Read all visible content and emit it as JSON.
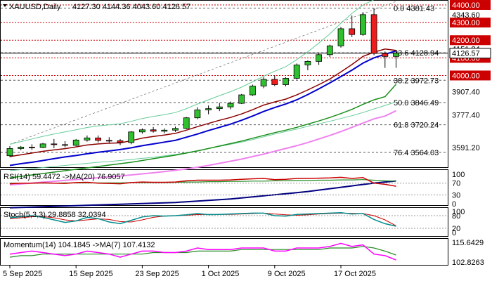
{
  "header": {
    "symbol": "XAUUSD,Daily",
    "ohlc": "4127.30 4144.36 4043.60 4126.57"
  },
  "price_panel": {
    "y_range": [
      3480,
      4420
    ],
    "axis_labels": [
      {
        "text": "4343.60",
        "value": 4343.6
      },
      {
        "text": "3907.40",
        "value": 3907.4
      },
      {
        "text": "3777.40",
        "value": 3777.4
      },
      {
        "text": "3591.20",
        "value": 3591.2
      }
    ],
    "red_levels": [
      {
        "text": "4400.00",
        "value": 4400
      },
      {
        "text": "4300.00",
        "value": 4300
      },
      {
        "text": "4200.00",
        "value": 4200
      },
      {
        "text": "4100.00",
        "value": 4100
      },
      {
        "text": "4000.00",
        "value": 4000
      }
    ],
    "current_price": {
      "text": "4126.57",
      "value": 4126.57
    },
    "ghost_price": {
      "text": "4151.24",
      "value": 4151.24
    },
    "fibo_levels": [
      {
        "text": "0.0 4381.43",
        "value": 4381.43
      },
      {
        "text": "23.6 4128.94",
        "value": 4128.94
      },
      {
        "text": "38.2 3972.73",
        "value": 3972.73
      },
      {
        "text": "50.0 3846.49",
        "value": 3846.49
      },
      {
        "text": "61.8 3720.24",
        "value": 3720.24
      },
      {
        "text": "76.4 3564.03",
        "value": 3564.03
      }
    ]
  },
  "rsi_panel": {
    "label": "RSI(14) 59.4472 ->MA(20) 76.9057",
    "y_range": [
      0,
      110
    ],
    "ticks": [
      {
        "text": "100",
        "value": 100
      },
      {
        "text": "70",
        "value": 70
      },
      {
        "text": "30",
        "value": 30
      },
      {
        "text": "0",
        "value": 0
      }
    ]
  },
  "stoch_panel": {
    "label": "Stoch(5,3,3) 29.8858 32.0394",
    "y_range": [
      -10,
      110
    ],
    "ticks": [
      {
        "text": "100",
        "value": 100
      },
      {
        "text": "80",
        "value": 80
      },
      {
        "text": "20",
        "value": 20
      },
      {
        "text": "0",
        "value": 0
      }
    ]
  },
  "momentum_panel": {
    "label": "Momentum(14) 104.1845 ->MA(7) 107.4132",
    "y_range": [
      101.5,
      117
    ],
    "ticks": [
      {
        "text": "115.6429",
        "value": 115.6429
      },
      {
        "text": "102.8263",
        "value": 102.8263
      }
    ]
  },
  "x_axis": {
    "labels": [
      {
        "text": "5 Sep 2025",
        "index": 0
      },
      {
        "text": "15 Sep 2025",
        "index": 6
      },
      {
        "text": "23 Sep 2025",
        "index": 12
      },
      {
        "text": "1 Oct 2025",
        "index": 18
      },
      {
        "text": "9 Oct 2025",
        "index": 24
      },
      {
        "text": "17 Oct 2025",
        "index": 30
      }
    ]
  },
  "colors": {
    "bull": "#2fbf2f",
    "bear": "#ee1c1c",
    "ma_fast": "#8b0000",
    "ma_mid": "#0000cc",
    "ma_slow": "#1a8f1a",
    "ma_200": "#ee82ee",
    "ma_300": "#000080",
    "band": "#66cc99",
    "level_red": "#cc0000",
    "grid_dash": "#444444",
    "rsi_line": "#cc0000",
    "rsi_ma": "#228b22",
    "stoch_k": "#008b8b",
    "stoch_d": "#cc0000",
    "mom": "#ff00ff",
    "mom_ma": "#228b22"
  },
  "chart_data": {
    "type": "candlestick",
    "title": "XAUUSD,Daily",
    "x_labels": [
      "5 Sep 2025",
      "15 Sep 2025",
      "23 Sep 2025",
      "1 Oct 2025",
      "9 Oct 2025",
      "17 Oct 2025"
    ],
    "candles": [
      {
        "o": 3545,
        "h": 3600,
        "l": 3538,
        "c": 3586
      },
      {
        "o": 3586,
        "h": 3600,
        "l": 3576,
        "c": 3594
      },
      {
        "o": 3594,
        "h": 3610,
        "l": 3578,
        "c": 3592
      },
      {
        "o": 3592,
        "h": 3618,
        "l": 3588,
        "c": 3612
      },
      {
        "o": 3612,
        "h": 3640,
        "l": 3588,
        "c": 3608
      },
      {
        "o": 3608,
        "h": 3628,
        "l": 3592,
        "c": 3604
      },
      {
        "o": 3604,
        "h": 3640,
        "l": 3600,
        "c": 3634
      },
      {
        "o": 3634,
        "h": 3660,
        "l": 3625,
        "c": 3646
      },
      {
        "o": 3646,
        "h": 3660,
        "l": 3620,
        "c": 3632
      },
      {
        "o": 3632,
        "h": 3650,
        "l": 3615,
        "c": 3630
      },
      {
        "o": 3630,
        "h": 3640,
        "l": 3605,
        "c": 3620
      },
      {
        "o": 3620,
        "h": 3685,
        "l": 3610,
        "c": 3680
      },
      {
        "o": 3680,
        "h": 3700,
        "l": 3670,
        "c": 3692
      },
      {
        "o": 3692,
        "h": 3708,
        "l": 3676,
        "c": 3684
      },
      {
        "o": 3684,
        "h": 3700,
        "l": 3672,
        "c": 3690
      },
      {
        "o": 3690,
        "h": 3710,
        "l": 3680,
        "c": 3700
      },
      {
        "o": 3700,
        "h": 3765,
        "l": 3696,
        "c": 3760
      },
      {
        "o": 3760,
        "h": 3820,
        "l": 3752,
        "c": 3805
      },
      {
        "o": 3805,
        "h": 3830,
        "l": 3780,
        "c": 3812
      },
      {
        "o": 3812,
        "h": 3845,
        "l": 3798,
        "c": 3822
      },
      {
        "o": 3822,
        "h": 3852,
        "l": 3808,
        "c": 3842
      },
      {
        "o": 3842,
        "h": 3895,
        "l": 3838,
        "c": 3890
      },
      {
        "o": 3890,
        "h": 3948,
        "l": 3884,
        "c": 3940
      },
      {
        "o": 3940,
        "h": 3990,
        "l": 3928,
        "c": 3978
      },
      {
        "o": 3978,
        "h": 4000,
        "l": 3940,
        "c": 3948
      },
      {
        "o": 3948,
        "h": 3990,
        "l": 3938,
        "c": 3984
      },
      {
        "o": 3984,
        "h": 4068,
        "l": 3978,
        "c": 4060
      },
      {
        "o": 4060,
        "h": 4085,
        "l": 4030,
        "c": 4080
      },
      {
        "o": 4080,
        "h": 4125,
        "l": 4060,
        "c": 4118
      },
      {
        "o": 4118,
        "h": 4175,
        "l": 4105,
        "c": 4168
      },
      {
        "o": 4168,
        "h": 4275,
        "l": 4158,
        "c": 4265
      },
      {
        "o": 4265,
        "h": 4340,
        "l": 4218,
        "c": 4232
      },
      {
        "o": 4232,
        "h": 4360,
        "l": 4225,
        "c": 4345
      },
      {
        "o": 4345,
        "h": 4381,
        "l": 4115,
        "c": 4125
      },
      {
        "o": 4125,
        "h": 4136,
        "l": 4043,
        "c": 4108
      },
      {
        "o": 4108,
        "h": 4144,
        "l": 4043,
        "c": 4126.57
      }
    ],
    "ma_fast": [
      3540,
      3550,
      3560,
      3570,
      3578,
      3585,
      3595,
      3606,
      3612,
      3616,
      3618,
      3630,
      3645,
      3654,
      3662,
      3672,
      3690,
      3710,
      3728,
      3746,
      3762,
      3782,
      3806,
      3832,
      3850,
      3866,
      3890,
      3918,
      3948,
      3980,
      4020,
      4062,
      4108,
      4132,
      4150,
      4142
    ],
    "ma_mid": [
      3490,
      3500,
      3508,
      3518,
      3528,
      3538,
      3546,
      3556,
      3565,
      3572,
      3580,
      3590,
      3602,
      3612,
      3622,
      3632,
      3650,
      3668,
      3688,
      3706,
      3724,
      3746,
      3770,
      3796,
      3818,
      3838,
      3862,
      3892,
      3924,
      3958,
      3994,
      4030,
      4070,
      4100,
      4120,
      4140
    ],
    "ma_slow": [
      3420,
      3428,
      3436,
      3444,
      3452,
      3460,
      3468,
      3476,
      3484,
      3492,
      3500,
      3508,
      3518,
      3528,
      3538,
      3548,
      3560,
      3572,
      3586,
      3600,
      3614,
      3628,
      3644,
      3660,
      3676,
      3690,
      3706,
      3724,
      3742,
      3762,
      3784,
      3808,
      3836,
      3862,
      3880,
      3950
    ],
    "ma_200": [
      3380,
      3385,
      3390,
      3395,
      3400,
      3405,
      3410,
      3415,
      3420,
      3425,
      3430,
      3436,
      3442,
      3448,
      3455,
      3462,
      3470,
      3480,
      3490,
      3502,
      3514,
      3526,
      3540,
      3554,
      3570,
      3586,
      3602,
      3620,
      3640,
      3660,
      3682,
      3706,
      3730,
      3754,
      3770,
      3800
    ],
    "ma_300": [
      3250,
      3252,
      3254,
      3256,
      3258,
      3260,
      3262,
      3264,
      3266,
      3268,
      3270,
      3272,
      3274,
      3276,
      3278,
      3280,
      3284,
      3288,
      3292,
      3296,
      3300,
      3306,
      3312,
      3318,
      3324,
      3330,
      3336,
      3342,
      3350,
      3358,
      3366,
      3374,
      3382,
      3390,
      3396,
      3402
    ],
    "band_upper": [
      3610,
      3625,
      3640,
      3655,
      3668,
      3680,
      3692,
      3705,
      3714,
      3720,
      3726,
      3740,
      3756,
      3768,
      3778,
      3790,
      3812,
      3838,
      3862,
      3886,
      3908,
      3934,
      3964,
      3996,
      4024,
      4050,
      4090,
      4134,
      4184,
      4236,
      4296,
      4352,
      4400,
      4430,
      4436,
      4432
    ],
    "band_lower": [
      3460,
      3466,
      3472,
      3478,
      3484,
      3490,
      3496,
      3502,
      3508,
      3512,
      3518,
      3524,
      3530,
      3536,
      3544,
      3552,
      3562,
      3574,
      3586,
      3598,
      3610,
      3622,
      3636,
      3652,
      3668,
      3682,
      3696,
      3712,
      3726,
      3740,
      3756,
      3772,
      3790,
      3810,
      3830,
      3850
    ],
    "rsi": [
      68,
      70,
      70,
      71,
      70,
      69,
      72,
      73,
      70,
      69,
      68,
      72,
      74,
      73,
      73,
      74,
      78,
      80,
      80,
      80,
      81,
      83,
      85,
      86,
      82,
      83,
      86,
      86,
      87,
      88,
      90,
      86,
      89,
      70,
      66,
      59.4472
    ],
    "rsi_ma": [
      70,
      70,
      70,
      70,
      70,
      71,
      71,
      71,
      71,
      71,
      71,
      72,
      72,
      72,
      72,
      73,
      74,
      74,
      75,
      75,
      76,
      76,
      77,
      77,
      78,
      78,
      79,
      79,
      80,
      80,
      81,
      81,
      82,
      80,
      78,
      76.9057
    ],
    "stoch_k": [
      70,
      75,
      80,
      72,
      60,
      48,
      55,
      72,
      66,
      50,
      42,
      58,
      74,
      80,
      78,
      80,
      84,
      90,
      85,
      86,
      88,
      90,
      92,
      92,
      80,
      78,
      86,
      88,
      90,
      92,
      94,
      88,
      90,
      62,
      42,
      29.8858
    ],
    "stoch_d": [
      65,
      70,
      75,
      76,
      70,
      60,
      55,
      60,
      65,
      62,
      52,
      50,
      60,
      72,
      78,
      80,
      82,
      85,
      86,
      86,
      86,
      88,
      90,
      92,
      88,
      84,
      82,
      84,
      88,
      90,
      92,
      91,
      90,
      80,
      60,
      32.0394
    ],
    "momentum": [
      108,
      109,
      110,
      109,
      108,
      107,
      108,
      110,
      109,
      108,
      106,
      108,
      110,
      110,
      109,
      109,
      110,
      112,
      111,
      111,
      111,
      112,
      112,
      112,
      110,
      110,
      112,
      112,
      112,
      113,
      115,
      113,
      114,
      108,
      107,
      104.1845
    ],
    "momentum_ma": [
      106,
      107,
      107,
      108,
      108,
      108,
      108,
      108,
      108,
      108,
      108,
      108,
      108,
      109,
      109,
      109,
      109,
      110,
      110,
      110,
      110,
      111,
      111,
      111,
      111,
      111,
      111,
      111,
      111,
      112,
      112,
      112,
      113,
      112,
      110,
      107.4132
    ]
  }
}
